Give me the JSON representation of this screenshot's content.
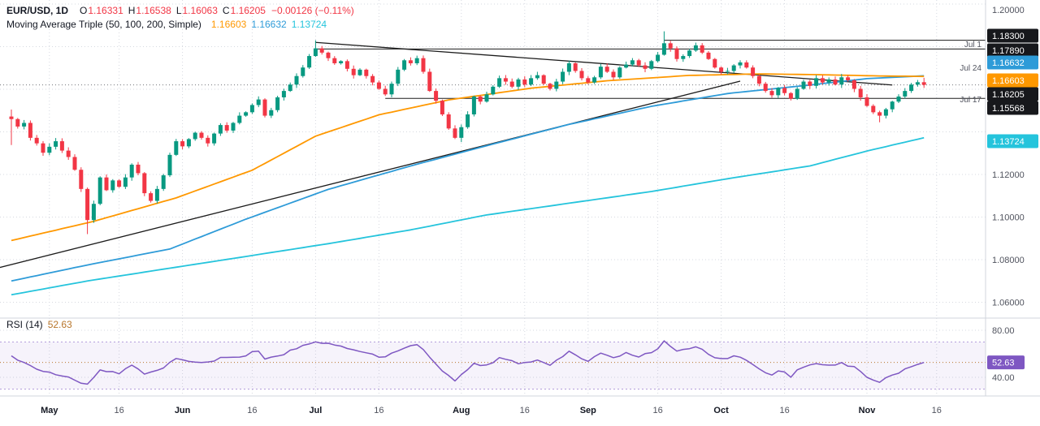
{
  "legend": {
    "title": "EUR/USD, 1D",
    "ohlc": [
      {
        "k": "O",
        "v": "1.16331"
      },
      {
        "k": "H",
        "v": "1.16538"
      },
      {
        "k": "L",
        "v": "1.16063"
      },
      {
        "k": "C",
        "v": "1.16205"
      }
    ],
    "change": "−0.00126 (−0.11%)",
    "ma_title": "Moving Average Triple (50, 100, 200, Simple)",
    "ma_values": [
      "1.16603",
      "1.16632",
      "1.13724"
    ],
    "rsi_title": "RSI (14)",
    "rsi_value": "52.63"
  },
  "chart_data": {
    "type": "candlestick",
    "symbol": "EUR/USD",
    "timeframe": "1D",
    "last_candle": {
      "open": 1.16331,
      "high": 1.16538,
      "low": 1.16063,
      "close": 1.16205,
      "change": -0.00126,
      "change_pct": -0.11
    },
    "first_open": 1.1472,
    "closes": [
      1.146,
      1.1425,
      1.1442,
      1.1372,
      1.1346,
      1.1302,
      1.133,
      1.1356,
      1.1312,
      1.1282,
      1.1222,
      1.1132,
      1.0986,
      1.1062,
      1.1186,
      1.1126,
      1.1172,
      1.1142,
      1.1186,
      1.1246,
      1.1206,
      1.1112,
      1.1076,
      1.1132,
      1.1196,
      1.1292,
      1.1356,
      1.1332,
      1.1366,
      1.1396,
      1.1372,
      1.1346,
      1.1392,
      1.1432,
      1.1406,
      1.1442,
      1.1476,
      1.1492,
      1.1526,
      1.1552,
      1.1476,
      1.1502,
      1.1562,
      1.1592,
      1.1622,
      1.1662,
      1.1702,
      1.1756,
      1.1792,
      1.1772,
      1.1746,
      1.1722,
      1.1732,
      1.1696,
      1.1666,
      1.1692,
      1.1662,
      1.1632,
      1.1602,
      1.1576,
      1.1626,
      1.1692,
      1.1736,
      1.1722,
      1.1746,
      1.1682,
      1.1592,
      1.1546,
      1.1482,
      1.1416,
      1.1372,
      1.1422,
      1.1482,
      1.1566,
      1.1542,
      1.1576,
      1.1612,
      1.1652,
      1.1636,
      1.1612,
      1.1646,
      1.1622,
      1.1652,
      1.1666,
      1.1626,
      1.1602,
      1.1636,
      1.1682,
      1.1722,
      1.1686,
      1.1652,
      1.1632,
      1.1656,
      1.1706,
      1.1682,
      1.1656,
      1.1702,
      1.1716,
      1.1736,
      1.1712,
      1.1696,
      1.1732,
      1.1762,
      1.1816,
      1.1792,
      1.1742,
      1.1756,
      1.1782,
      1.1806,
      1.1772,
      1.1742,
      1.1702,
      1.1682,
      1.1686,
      1.1712,
      1.1726,
      1.1702,
      1.1662,
      1.1626,
      1.1592,
      1.1572,
      1.1606,
      1.1582,
      1.1556,
      1.1602,
      1.1636,
      1.1616,
      1.1652,
      1.1632,
      1.1646,
      1.1622,
      1.1656,
      1.1642,
      1.1602,
      1.1562,
      1.1522,
      1.1492,
      1.1476,
      1.1506,
      1.1542,
      1.1566,
      1.1592,
      1.1622,
      1.16331,
      1.16205
    ],
    "wick_overrides": {
      "0": {
        "high": 1.1505,
        "low": 1.1338
      },
      "12": {
        "low": 1.092
      },
      "48": {
        "high": 1.183
      },
      "71": {
        "low": 1.1352
      },
      "103": {
        "high": 1.1872
      },
      "137": {
        "low": 1.1445
      }
    },
    "ma50": {
      "name": "SMA 50",
      "value": 1.16603,
      "points": [
        [
          0,
          1.089
        ],
        [
          13,
          1.098
        ],
        [
          26,
          1.109
        ],
        [
          38,
          1.122
        ],
        [
          48,
          1.138
        ],
        [
          58,
          1.148
        ],
        [
          69,
          1.155
        ],
        [
          82,
          1.1605
        ],
        [
          94,
          1.164
        ],
        [
          107,
          1.1665
        ],
        [
          118,
          1.1672
        ],
        [
          128,
          1.1668
        ],
        [
          138,
          1.1662
        ],
        [
          144,
          1.16603
        ]
      ]
    },
    "ma100": {
      "name": "SMA 100",
      "value": 1.16632,
      "points": [
        [
          0,
          1.07
        ],
        [
          12,
          1.0775
        ],
        [
          25,
          1.085
        ],
        [
          37,
          1.099
        ],
        [
          50,
          1.113
        ],
        [
          63,
          1.124
        ],
        [
          75,
          1.1335
        ],
        [
          88,
          1.1435
        ],
        [
          101,
          1.152
        ],
        [
          113,
          1.158
        ],
        [
          126,
          1.162
        ],
        [
          135,
          1.165
        ],
        [
          144,
          1.16632
        ]
      ]
    },
    "ma200": {
      "name": "SMA 200",
      "value": 1.13724,
      "points": [
        [
          0,
          1.0635
        ],
        [
          12,
          1.07
        ],
        [
          25,
          1.076
        ],
        [
          37,
          1.0815
        ],
        [
          50,
          1.0875
        ],
        [
          63,
          1.094
        ],
        [
          75,
          1.101
        ],
        [
          88,
          1.1065
        ],
        [
          101,
          1.112
        ],
        [
          113,
          1.118
        ],
        [
          126,
          1.124
        ],
        [
          135,
          1.131
        ],
        [
          144,
          1.13724
        ]
      ]
    },
    "rsi": {
      "name": "RSI (14)",
      "value": 52.63,
      "upper_band": 70,
      "lower_band": 30,
      "axis_ticks": [
        {
          "text": "80.00",
          "v": 80
        },
        {
          "text": "40.00",
          "v": 40
        }
      ],
      "badge": "52.63",
      "points": [
        [
          0,
          58
        ],
        [
          2,
          52
        ],
        [
          4,
          48
        ],
        [
          6,
          44
        ],
        [
          9,
          40
        ],
        [
          12,
          33
        ],
        [
          14,
          45
        ],
        [
          17,
          44
        ],
        [
          19,
          50
        ],
        [
          21,
          42
        ],
        [
          23,
          45
        ],
        [
          26,
          55
        ],
        [
          28,
          54
        ],
        [
          31,
          52
        ],
        [
          33,
          56
        ],
        [
          36,
          58
        ],
        [
          39,
          62
        ],
        [
          40,
          56
        ],
        [
          43,
          60
        ],
        [
          46,
          66
        ],
        [
          48,
          71
        ],
        [
          50,
          68
        ],
        [
          52,
          66
        ],
        [
          55,
          62
        ],
        [
          58,
          57
        ],
        [
          60,
          60
        ],
        [
          62,
          64
        ],
        [
          64,
          68
        ],
        [
          66,
          58
        ],
        [
          68,
          46
        ],
        [
          70,
          38
        ],
        [
          71,
          42
        ],
        [
          73,
          52
        ],
        [
          75,
          50
        ],
        [
          77,
          56
        ],
        [
          79,
          53
        ],
        [
          81,
          52
        ],
        [
          83,
          55
        ],
        [
          85,
          51
        ],
        [
          87,
          58
        ],
        [
          88,
          62
        ],
        [
          90,
          56
        ],
        [
          91,
          54
        ],
        [
          93,
          60
        ],
        [
          95,
          56
        ],
        [
          97,
          60
        ],
        [
          99,
          58
        ],
        [
          101,
          60
        ],
        [
          103,
          70
        ],
        [
          105,
          62
        ],
        [
          107,
          64
        ],
        [
          108,
          67
        ],
        [
          110,
          60
        ],
        [
          112,
          55
        ],
        [
          114,
          58
        ],
        [
          116,
          54
        ],
        [
          118,
          47
        ],
        [
          120,
          42
        ],
        [
          121,
          46
        ],
        [
          123,
          41
        ],
        [
          124,
          46
        ],
        [
          126,
          50
        ],
        [
          127,
          52
        ],
        [
          129,
          50
        ],
        [
          131,
          53
        ],
        [
          133,
          48
        ],
        [
          135,
          41
        ],
        [
          137,
          36
        ],
        [
          139,
          42
        ],
        [
          141,
          47
        ],
        [
          143,
          51
        ],
        [
          144,
          52.63
        ]
      ]
    },
    "price_axis": {
      "plain_labels": [
        {
          "text": "1.20000",
          "price": 1.2
        },
        {
          "text": "1.12000",
          "price": 1.12
        },
        {
          "text": "1.10000",
          "price": 1.1
        },
        {
          "text": "1.08000",
          "price": 1.08
        },
        {
          "text": "1.06000",
          "price": 1.06
        }
      ],
      "badges": [
        {
          "text": "1.18300",
          "color": "black"
        },
        {
          "text": "1.17890",
          "color": "black"
        },
        {
          "text": "1.16632",
          "color": "blue"
        },
        {
          "text": "1.16603",
          "color": "orange"
        },
        {
          "text": "1.16205",
          "color": "black"
        },
        {
          "text": "1.15568",
          "color": "black"
        },
        {
          "text": "1.13724",
          "color": "cyan"
        }
      ],
      "date_labels": [
        "Jul 1",
        "Jul 24",
        "Jul 17"
      ]
    },
    "x_ticks": [
      {
        "label": "May",
        "i": 6
      },
      {
        "label": "16",
        "i": 17
      },
      {
        "label": "Jun",
        "i": 27
      },
      {
        "label": "16",
        "i": 38
      },
      {
        "label": "Jul",
        "i": 48
      },
      {
        "label": "16",
        "i": 58
      },
      {
        "label": "Aug",
        "i": 71
      },
      {
        "label": "16",
        "i": 81
      },
      {
        "label": "Sep",
        "i": 91
      },
      {
        "label": "16",
        "i": 102
      },
      {
        "label": "Oct",
        "i": 112
      },
      {
        "label": "16",
        "i": 122
      },
      {
        "label": "Nov",
        "i": 135
      },
      {
        "label": "16",
        "i": 146
      }
    ],
    "grid_prices": [
      1.2,
      1.18,
      1.16,
      1.14,
      1.12,
      1.1,
      1.08,
      1.06
    ],
    "annotations": {
      "hlines": [
        {
          "price": 1.183,
          "from_i": 103
        },
        {
          "price": 1.1789,
          "from_i": 48
        },
        {
          "price": 1.1557,
          "from_i": 59
        }
      ],
      "trendlines": [
        {
          "from": [
            -2,
            1.0762
          ],
          "to": [
            115,
            1.1638
          ]
        },
        {
          "from": [
            48,
            1.182
          ],
          "to": [
            139,
            1.162
          ]
        }
      ],
      "last_price_line": 1.16205,
      "rsi_dotted_level": 52.63
    },
    "colors": {
      "up": "#089981",
      "down": "#f23645",
      "ma50": "#ff9800",
      "ma100": "#2e9bd8",
      "ma200": "#25c4dc",
      "rsi": "#7e57c2",
      "rsi_band": "#b39ddb",
      "rsi_fill": "rgba(126,87,194,0.07)",
      "badge_black": "#17181c",
      "badge_blue": "#2e9bd8",
      "badge_orange": "#ff9800",
      "badge_cyan": "#25c4dc",
      "badge_purple": "#7e57c2",
      "grid": "#d6d9e0",
      "axis_text": "#50535e",
      "month_text": "#131722",
      "line_dark": "#1c1c1c",
      "divider": "#d1d4dc"
    }
  }
}
